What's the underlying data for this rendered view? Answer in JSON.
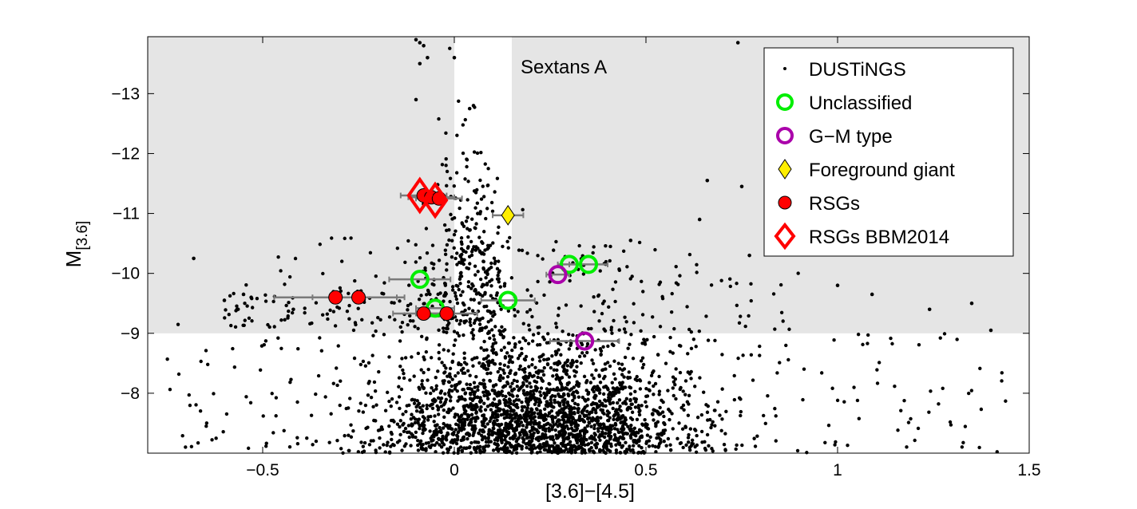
{
  "chart_data": {
    "type": "scatter",
    "title": "Sextans A",
    "xlabel": "[3.6]−[4.5]",
    "ylabel_main": "M",
    "ylabel_sub": "[3.6]",
    "xlim": [
      -0.8,
      1.5
    ],
    "ylim": [
      -7.0,
      -13.95
    ],
    "y_axis_inverted": true,
    "x_ticks": [
      -0.5,
      0,
      0.5,
      1,
      1.5
    ],
    "x_tick_labels": [
      "−0.5",
      "0",
      "0.5",
      "1",
      "1.5"
    ],
    "y_ticks": [
      -8,
      -9,
      -10,
      -11,
      -12,
      -13
    ],
    "y_tick_labels": [
      "−8",
      "−9",
      "−10",
      "−11",
      "−12",
      "−13"
    ],
    "grid": false,
    "legend_position": "top-right",
    "shaded_regions": {
      "color": "#e5e5e5",
      "description": "shaded where M[3.6] brighter than -9, excluding 0 to 0.15 in color",
      "mag_threshold": -9.0,
      "gap_x": [
        0.0,
        0.15
      ]
    },
    "series": [
      {
        "name": "DUSTiNGS",
        "marker": "dot",
        "color": "#000000",
        "note": "several thousand field sources; densest near [3.6]-[4.5] 0-0.5 and M -7 to -9, vertical plume near 0 to 0.05 up to -13.9",
        "points": [
          [
            -0.1,
            -13.9
          ],
          [
            -0.09,
            -13.85
          ],
          [
            -0.08,
            -13.8
          ],
          [
            -0.07,
            -13.6
          ],
          [
            0.0,
            -13.6
          ],
          [
            -0.09,
            -13.5
          ],
          [
            -0.1,
            -12.9
          ],
          [
            0.05,
            -12.8
          ],
          [
            0.04,
            -12.75
          ],
          [
            0.74,
            -13.85
          ],
          [
            0.66,
            -11.55
          ],
          [
            0.75,
            -11.45
          ],
          [
            0.64,
            -10.9
          ],
          [
            0.46,
            -10.55
          ],
          [
            0.77,
            -10.3
          ],
          [
            1.0,
            -9.8
          ],
          [
            1.09,
            -9.65
          ],
          [
            1.35,
            -9.5
          ],
          [
            1.24,
            -9.4
          ],
          [
            1.4,
            -9.05
          ],
          [
            -0.42,
            -9.4
          ],
          [
            -0.68,
            -10.25
          ],
          [
            -0.55,
            -9.65
          ],
          [
            -0.53,
            -9.6
          ],
          [
            -0.6,
            -9.55
          ]
        ]
      },
      {
        "name": "Unclassified",
        "marker": "open-circle",
        "color": "#00ee00",
        "points": [
          [
            -0.09,
            -9.9
          ],
          [
            -0.05,
            -9.42
          ],
          [
            0.14,
            -9.55
          ],
          [
            0.3,
            -10.15
          ],
          [
            0.35,
            -10.15
          ]
        ],
        "xerr": [
          0.08,
          0.05,
          0.07,
          0.03,
          0.05
        ]
      },
      {
        "name": "G−M type",
        "marker": "open-circle",
        "color": "#aa00aa",
        "points": [
          [
            0.27,
            -9.98
          ],
          [
            0.34,
            -8.87
          ]
        ],
        "xerr": [
          0.03,
          0.09
        ]
      },
      {
        "name": "Foreground giant",
        "marker": "diamond",
        "color": "#ffee00",
        "points": [
          [
            0.14,
            -10.97
          ]
        ],
        "xerr": [
          0.04
        ]
      },
      {
        "name": "RSGs",
        "marker": "filled-circle",
        "color": "#ff0000",
        "points": [
          [
            -0.31,
            -9.6
          ],
          [
            -0.25,
            -9.6
          ],
          [
            -0.08,
            -9.33
          ],
          [
            -0.02,
            -9.33
          ],
          [
            -0.08,
            -11.3
          ],
          [
            -0.06,
            -11.27
          ],
          [
            -0.04,
            -11.25
          ]
        ],
        "xerr": [
          0.16,
          0.12,
          0.08,
          0.08,
          0.06,
          0.06,
          0.06
        ]
      },
      {
        "name": "RSGs BBM2014",
        "marker": "open-diamond",
        "color": "#ff0000",
        "points": [
          [
            -0.09,
            -11.3
          ],
          [
            -0.05,
            -11.22
          ]
        ]
      }
    ]
  }
}
